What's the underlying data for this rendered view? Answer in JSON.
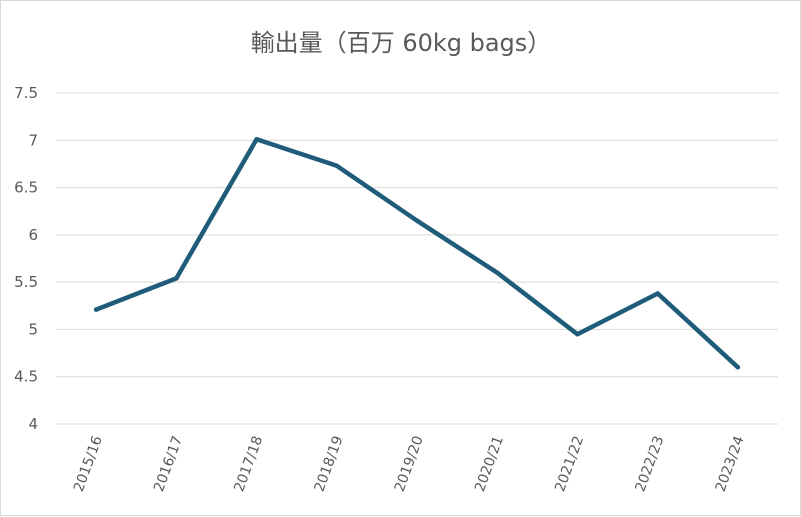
{
  "chart_data": {
    "type": "line",
    "title": "輸出量（百万 60kg bags）",
    "xlabel": "",
    "ylabel": "",
    "categories": [
      "2015/16",
      "2016/17",
      "2017/18",
      "2018/19",
      "2019/20",
      "2020/21",
      "2021/22",
      "2022/23",
      "2023/24"
    ],
    "series": [
      {
        "values": [
          5.21,
          5.54,
          7.01,
          6.73,
          6.15,
          5.6,
          4.95,
          5.38,
          4.6
        ],
        "color": "#1f5c7a"
      }
    ],
    "y_ticks": [
      "4",
      "4.5",
      "5",
      "5.5",
      "6",
      "6.5",
      "7",
      "7.5"
    ],
    "ylim": [
      4,
      7.5
    ],
    "grid": true,
    "legend": "none"
  }
}
